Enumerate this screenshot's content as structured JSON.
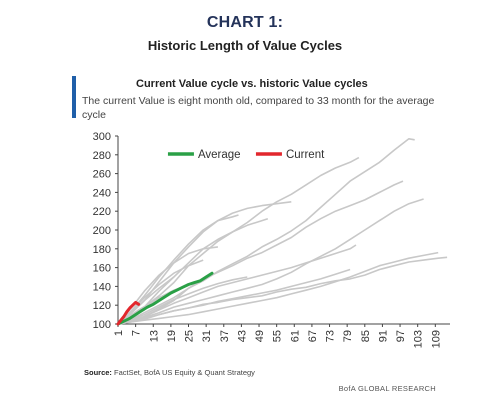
{
  "header": {
    "kicker": "CHART 1:",
    "title": "Historic Length of Value Cycles"
  },
  "chart_header": {
    "title": "Current Value cycle vs. historic Value cycles",
    "subtitle": "The current Value is eight month old, compared to 33 month for the average cycle"
  },
  "footer": {
    "source_label": "Source:",
    "source_text": "FactSet, BofA US Equity & Quant Strategy",
    "brand": "BofA GLOBAL RESEARCH"
  },
  "chart_data": {
    "type": "line",
    "title": "Current Value cycle vs. historic Value cycles",
    "xlabel": "",
    "ylabel": "",
    "xlim": [
      1,
      114
    ],
    "ylim": [
      100,
      300
    ],
    "x_ticks": [
      1,
      7,
      13,
      19,
      25,
      31,
      37,
      43,
      49,
      55,
      61,
      67,
      73,
      79,
      85,
      91,
      97,
      103,
      109
    ],
    "y_ticks": [
      100,
      120,
      140,
      160,
      180,
      200,
      220,
      240,
      260,
      280,
      300
    ],
    "grid": false,
    "legend": {
      "position": "top-center",
      "entries": [
        "Average",
        "Current"
      ]
    },
    "colors": {
      "historic": "#c8c8c8",
      "Average": "#2aa046",
      "Current": "#e2272d"
    },
    "historic_series": [
      {
        "x": [
          1,
          5,
          10,
          15,
          20,
          25,
          30,
          35,
          40,
          45,
          50,
          55,
          60,
          65,
          70,
          75,
          80,
          85,
          90,
          95,
          100,
          105,
          110,
          113
        ],
        "y": [
          100,
          102,
          105,
          110,
          114,
          117,
          121,
          123,
          126,
          128,
          130,
          134,
          137,
          139,
          143,
          146,
          148,
          152,
          158,
          162,
          166,
          168,
          170,
          171
        ]
      },
      {
        "x": [
          1,
          5,
          10,
          15,
          20,
          25,
          30,
          35,
          40,
          45,
          50,
          55,
          60,
          65,
          70,
          75,
          80,
          85,
          90,
          95,
          98
        ],
        "y": [
          100,
          103,
          108,
          116,
          125,
          138,
          148,
          155,
          162,
          170,
          176,
          184,
          192,
          203,
          212,
          220,
          226,
          232,
          240,
          248,
          252
        ]
      },
      {
        "x": [
          1,
          5,
          10,
          15,
          20,
          25,
          30,
          35,
          40,
          45,
          50,
          55,
          60,
          65,
          70,
          75,
          80,
          85,
          90,
          95,
          100,
          102
        ],
        "y": [
          100,
          104,
          112,
          120,
          128,
          138,
          146,
          156,
          164,
          172,
          182,
          190,
          199,
          210,
          224,
          238,
          252,
          262,
          272,
          285,
          297,
          296
        ]
      },
      {
        "x": [
          1,
          5,
          10,
          15,
          20,
          25,
          30,
          35,
          40,
          45,
          50,
          55,
          60,
          65,
          70,
          75,
          80,
          83
        ],
        "y": [
          100,
          106,
          115,
          130,
          144,
          162,
          175,
          188,
          198,
          208,
          220,
          230,
          238,
          248,
          258,
          266,
          272,
          277
        ]
      },
      {
        "x": [
          1,
          5,
          10,
          15,
          20,
          25,
          30,
          35,
          40,
          45,
          50,
          55,
          60,
          65,
          70,
          75,
          80,
          85,
          90,
          95,
          100,
          105
        ],
        "y": [
          100,
          103,
          107,
          112,
          118,
          122,
          126,
          130,
          134,
          138,
          142,
          148,
          155,
          164,
          172,
          180,
          190,
          200,
          210,
          220,
          228,
          233
        ]
      },
      {
        "x": [
          1,
          5,
          10,
          15,
          20,
          25,
          30,
          35,
          40,
          45,
          50,
          55,
          60,
          65,
          70,
          75,
          80,
          82
        ],
        "y": [
          100,
          103,
          108,
          115,
          122,
          128,
          134,
          140,
          144,
          148,
          152,
          156,
          160,
          165,
          170,
          175,
          180,
          184
        ]
      },
      {
        "x": [
          1,
          5,
          10,
          15,
          20,
          25,
          30,
          35,
          40,
          45,
          50,
          55,
          60
        ],
        "y": [
          100,
          110,
          125,
          145,
          165,
          182,
          198,
          210,
          218,
          223,
          226,
          228,
          230
        ]
      },
      {
        "x": [
          1,
          5,
          10,
          15,
          20,
          25,
          30,
          35,
          40,
          45,
          50,
          52
        ],
        "y": [
          100,
          106,
          118,
          135,
          150,
          165,
          180,
          190,
          198,
          205,
          210,
          212
        ]
      },
      {
        "x": [
          1,
          5,
          10,
          15,
          20,
          25,
          30,
          35,
          40,
          42
        ],
        "y": [
          100,
          112,
          130,
          150,
          168,
          185,
          200,
          210,
          214,
          216
        ]
      },
      {
        "x": [
          1,
          5,
          10,
          15,
          20,
          25,
          30,
          35,
          40,
          45,
          50,
          55,
          60,
          65,
          70,
          75,
          80
        ],
        "y": [
          100,
          103,
          106,
          110,
          114,
          117,
          120,
          124,
          127,
          130,
          133,
          136,
          140,
          144,
          148,
          153,
          158
        ]
      },
      {
        "x": [
          1,
          5,
          10,
          15,
          20,
          25,
          30,
          35,
          40,
          45,
          50,
          55,
          60,
          65,
          70,
          75,
          80,
          85,
          90,
          95,
          100,
          105,
          110
        ],
        "y": [
          100,
          102,
          104,
          106,
          108,
          110,
          113,
          116,
          119,
          122,
          125,
          128,
          132,
          136,
          140,
          145,
          150,
          156,
          162,
          166,
          170,
          173,
          176
        ]
      },
      {
        "x": [
          1,
          5,
          10,
          15,
          20,
          25,
          30,
          35
        ],
        "y": [
          100,
          115,
          135,
          152,
          165,
          175,
          180,
          182
        ]
      },
      {
        "x": [
          1,
          5,
          10,
          15,
          20,
          25,
          30
        ],
        "y": [
          100,
          112,
          128,
          142,
          154,
          162,
          168
        ]
      },
      {
        "x": [
          1,
          5,
          10,
          15,
          20,
          25
        ],
        "y": [
          100,
          108,
          118,
          128,
          136,
          142
        ]
      },
      {
        "x": [
          1,
          5,
          10,
          15,
          20
        ],
        "y": [
          100,
          110,
          125,
          138,
          150
        ]
      },
      {
        "x": [
          1,
          5,
          10,
          15
        ],
        "y": [
          100,
          108,
          118,
          130
        ]
      },
      {
        "x": [
          1,
          5,
          10,
          15,
          20,
          25,
          30,
          35,
          40,
          45
        ],
        "y": [
          100,
          104,
          110,
          118,
          126,
          132,
          138,
          143,
          147,
          150
        ]
      },
      {
        "x": [
          1,
          4,
          8,
          12
        ],
        "y": [
          100,
          106,
          115,
          122
        ]
      }
    ],
    "series": [
      {
        "name": "Average",
        "x": [
          1,
          3,
          5,
          7,
          9,
          11,
          13,
          15,
          17,
          19,
          21,
          23,
          25,
          27,
          29,
          31,
          33
        ],
        "y": [
          100,
          103,
          106,
          110,
          114,
          118,
          121,
          125,
          129,
          133,
          136,
          139,
          142,
          144,
          146,
          150,
          154
        ]
      },
      {
        "name": "Current",
        "x": [
          1,
          2,
          3,
          4,
          5,
          6,
          7,
          8
        ],
        "y": [
          100,
          104,
          108,
          113,
          117,
          120,
          123,
          121
        ]
      }
    ]
  }
}
